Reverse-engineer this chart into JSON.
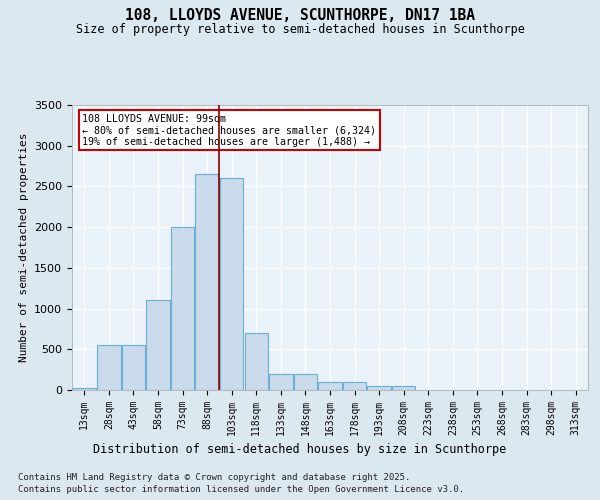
{
  "title": "108, LLOYDS AVENUE, SCUNTHORPE, DN17 1BA",
  "subtitle": "Size of property relative to semi-detached houses in Scunthorpe",
  "xlabel": "Distribution of semi-detached houses by size in Scunthorpe",
  "ylabel": "Number of semi-detached properties",
  "bin_labels": [
    "13sqm",
    "28sqm",
    "43sqm",
    "58sqm",
    "73sqm",
    "88sqm",
    "103sqm",
    "118sqm",
    "133sqm",
    "148sqm",
    "163sqm",
    "178sqm",
    "193sqm",
    "208sqm",
    "223sqm",
    "238sqm",
    "253sqm",
    "268sqm",
    "283sqm",
    "298sqm",
    "313sqm"
  ],
  "bar_values": [
    30,
    550,
    550,
    1100,
    2000,
    2650,
    2600,
    700,
    200,
    200,
    100,
    100,
    50,
    50,
    0,
    0,
    0,
    0,
    0,
    0,
    0
  ],
  "bar_color": "#c9daea",
  "bar_edge_color": "#6aaed6",
  "property_line_x": 6,
  "property_line_color": "#8b0000",
  "annotation_title": "108 LLOYDS AVENUE: 99sqm",
  "annotation_line1": "← 80% of semi-detached houses are smaller (6,324)",
  "annotation_line2": "19% of semi-detached houses are larger (1,488) →",
  "annotation_box_color": "#cc0000",
  "ylim": [
    0,
    3500
  ],
  "yticks": [
    0,
    500,
    1000,
    1500,
    2000,
    2500,
    3000,
    3500
  ],
  "footnote1": "Contains HM Land Registry data © Crown copyright and database right 2025.",
  "footnote2": "Contains public sector information licensed under the Open Government Licence v3.0.",
  "bg_color": "#dce8f0",
  "plot_bg_color": "#e8f2f8",
  "grid_color": "#ffffff",
  "n_bins": 21
}
